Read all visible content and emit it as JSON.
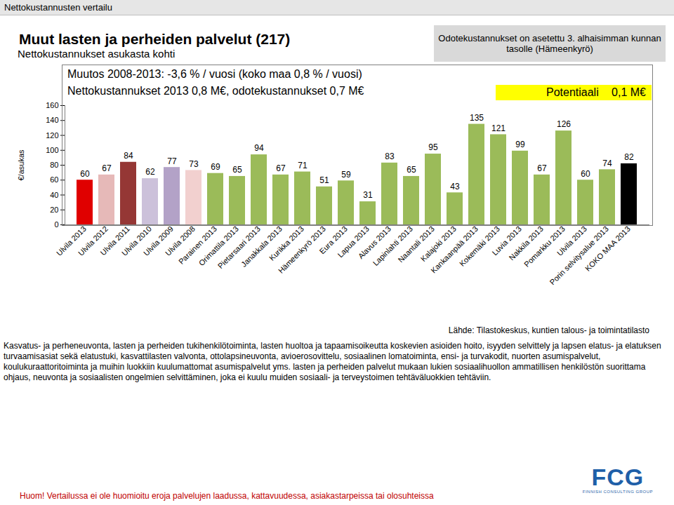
{
  "page": {
    "header": "Nettokustannusten vertailu",
    "note": "Odotekustannukset on asetettu 3. alhaisimman kunnan tasolle (Hämeenkyrö)",
    "source": "Lähde: Tilastokeskus, kuntien talous- ja toimintatilasto",
    "description": "Kasvatus- ja perheneuvonta, lasten ja perheiden tukihenkilötoiminta, lasten huoltoa ja tapaamisoikeutta koskevien asioiden hoito, isyyden selvittely ja lapsen elatus- ja elatuksen turvaamisasiat sekä elatustuki, kasvattilasten valvonta, ottolapsineuvonta, avioerosovittelu, sosiaalinen lomatoiminta, ensi- ja turvakodit, nuorten asumispalvelut, koulukuraattoritoiminta ja muihin luokkiin kuulumattomat asumispalvelut yms. lasten ja perheiden palvelut mukaan lukien sosiaalihuollon ammatillisen henkilöstön suorittama ohjaus, neuvonta ja sosiaalisten ongelmien selvittäminen, joka ei kuulu muiden sosiaali- ja terveystoimen tehtäväluokkien tehtäviin.",
    "footnote": "Huom! Vertailussa ei ole huomioitu eroja palvelujen laadussa, kattavuudessa, asiakastarpeissa tai olosuhteissa",
    "logo": "FCG",
    "logo_text": "FINNISH CONSULTING GROUP"
  },
  "chart_data": {
    "type": "bar",
    "title": "Muut lasten ja perheiden palvelut (217)",
    "subtitle": "Nettokustannukset asukasta kohti",
    "annotations": [
      "Muutos 2008-2013: -3,6 % / vuosi (koko maa 0,8 % / vuosi)",
      "Nettokustannukset 2013 0,8 M€, odotekustannukset 0,7 M€"
    ],
    "potential": {
      "label": "Potentiaali",
      "value": "0,1 M€"
    },
    "y_label": "€/asukas",
    "categories": [
      "Ulvila 2013",
      "Ulvila 2012",
      "Ulvila 2011",
      "Ulvila 2010",
      "Ulvila 2009",
      "Ulvila 2008",
      "Parainen 2013",
      "Orimattila 2013",
      "Pietarsaari 2013",
      "Janakkala 2013",
      "Kurikka 2013",
      "Hämeenkyrö 2013",
      "Eura 2013",
      "Lapua 2013",
      "Alavus 2013",
      "Lapinlahti 2013",
      "Naantali 2013",
      "Kalajoki 2013",
      "Kankaanpää 2013",
      "Kokemäki 2013",
      "Luvia 2013",
      "Nakkila 2013",
      "Pomarkku 2013",
      "Ulvila 2013",
      "Porin selvitysalue 2013",
      "KOKO MAA 2013"
    ],
    "values": [
      60,
      67,
      84,
      62,
      77,
      73,
      69,
      65,
      94,
      67,
      71,
      51,
      59,
      31,
      83,
      65,
      95,
      43,
      135,
      121,
      99,
      67,
      126,
      60,
      74,
      82
    ],
    "colors": [
      "#e00000",
      "#e6b9b8",
      "#953735",
      "#ccc1da",
      "#b3a2c7",
      "#f2d0cf",
      "#9bbb59",
      "#9bbb59",
      "#9bbb59",
      "#9bbb59",
      "#9bbb59",
      "#9bbb59",
      "#9bbb59",
      "#9bbb59",
      "#9bbb59",
      "#9bbb59",
      "#9bbb59",
      "#9bbb59",
      "#9bbb59",
      "#9bbb59",
      "#9bbb59",
      "#9bbb59",
      "#9bbb59",
      "#9bbb59",
      "#9bbb59",
      "#000000"
    ],
    "ylim": [
      0,
      160
    ],
    "yticks": [
      0,
      20,
      40,
      60,
      80,
      100,
      120,
      140,
      160
    ],
    "grid": false,
    "data_labels": true
  }
}
